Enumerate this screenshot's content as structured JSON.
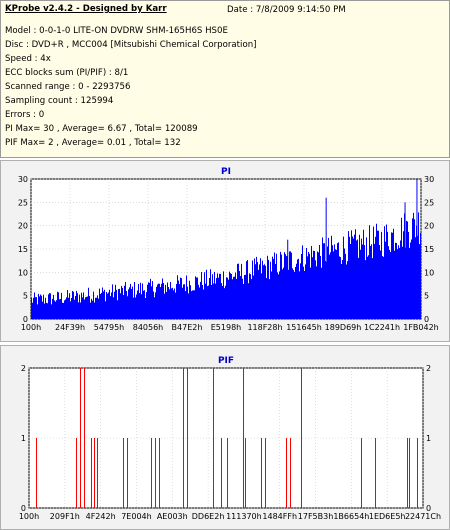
{
  "info": {
    "title": "KProbe v2.4.2 - Designed by Karr",
    "date": "Date : 7/8/2009 9:14:50 PM",
    "lines": [
      "Model : 0-0-1-0 LITE-ON DVDRW SHM-165H6S HS0E",
      "Disc : DVD+R , MCC004 [Mitsubishi Chemical Corporation]",
      "Speed : 4x",
      "ECC blocks sum (PI/PIF) : 8/1",
      "Scanned range : 0 - 2293756",
      "Sampling count : 125994",
      "Errors : 0",
      "PI Max= 30 , Average= 6.67 , Total= 120089",
      "PIF Max= 2 , Average= 0.01 , Total= 132"
    ]
  },
  "chart_data": [
    {
      "type": "bar",
      "title": "PI",
      "color": "#0000ff",
      "ylim": [
        0,
        30
      ],
      "yticks": [
        0,
        5,
        10,
        15,
        20,
        25,
        30
      ],
      "xlim": [
        256,
        2293756
      ],
      "xtick_labels": [
        "100h",
        "24F39h",
        "54795h",
        "84056h",
        "B47E2h",
        "E5198h",
        "118F28h",
        "151645h",
        "189D69h",
        "1C2241h",
        "1FB042h"
      ],
      "grid": true,
      "profile": {
        "x": [
          256,
          229376,
          458752,
          688128,
          917504,
          1146880,
          1376256,
          1605632,
          1835008,
          2064384,
          2293756
        ],
        "y": [
          2.5,
          3.0,
          3.8,
          4.5,
          5.4,
          6.5,
          8.2,
          10.0,
          11.5,
          13.0,
          16.0
        ]
      },
      "peaks": [
        {
          "x": 1510000,
          "y": 17
        },
        {
          "x": 1736000,
          "y": 26
        },
        {
          "x": 2200000,
          "y": 25
        },
        {
          "x": 2270000,
          "y": 30
        }
      ]
    },
    {
      "type": "bar",
      "title": "PIF",
      "color": "#ff0000",
      "ylim": [
        0,
        2
      ],
      "yticks": [
        0,
        1,
        2
      ],
      "xlim": [
        256,
        2293756
      ],
      "xtick_labels": [
        "100h",
        "209F1h",
        "4F242h",
        "7E004h",
        "AE003h",
        "DD6E2h",
        "111370h",
        "1484FFh",
        "17F5B3h",
        "1B6654h",
        "1ED6E5h",
        "22471Ch"
      ],
      "grid": true,
      "bars": [
        {
          "x": 40000,
          "y": 1
        },
        {
          "x": 275000,
          "y": 1
        },
        {
          "x": 300000,
          "y": 2
        },
        {
          "x": 318000,
          "y": 2
        },
        {
          "x": 362000,
          "y": 1
        },
        {
          "x": 380000,
          "y": 1
        },
        {
          "x": 398000,
          "y": 1
        },
        {
          "x": 548000,
          "y": 1
        },
        {
          "x": 572000,
          "y": 1
        },
        {
          "x": 708000,
          "y": 1
        },
        {
          "x": 732000,
          "y": 1
        },
        {
          "x": 755000,
          "y": 1
        },
        {
          "x": 898000,
          "y": 2
        },
        {
          "x": 918000,
          "y": 2
        },
        {
          "x": 1072000,
          "y": 2
        },
        {
          "x": 1118000,
          "y": 1
        },
        {
          "x": 1152000,
          "y": 1
        },
        {
          "x": 1245000,
          "y": 2
        },
        {
          "x": 1260000,
          "y": 1
        },
        {
          "x": 1352000,
          "y": 1
        },
        {
          "x": 1372000,
          "y": 1
        },
        {
          "x": 1495000,
          "y": 1
        },
        {
          "x": 1520000,
          "y": 1
        },
        {
          "x": 1582000,
          "y": 2
        },
        {
          "x": 1930000,
          "y": 1
        },
        {
          "x": 2012000,
          "y": 1
        },
        {
          "x": 2198000,
          "y": 1
        },
        {
          "x": 2212000,
          "y": 1
        },
        {
          "x": 2258000,
          "y": 1
        }
      ]
    }
  ]
}
